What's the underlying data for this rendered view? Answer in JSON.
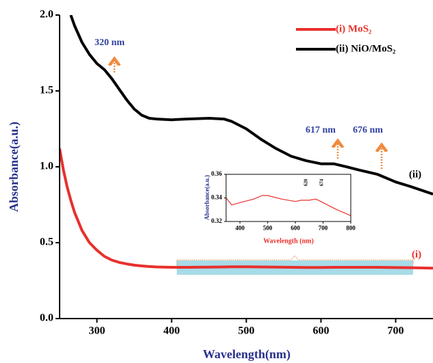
{
  "chart_data": [
    {
      "type": "line",
      "xlabel": "Wavelength(nm)",
      "ylabel": "Absorbance(a.u.)",
      "x": [
        250,
        255,
        260,
        265,
        270,
        280,
        290,
        300,
        310,
        320,
        330,
        340,
        350,
        360,
        370,
        380,
        400,
        420,
        450,
        470,
        480,
        500,
        520,
        540,
        560,
        580,
        600,
        617,
        630,
        650,
        676,
        700,
        720,
        750
      ],
      "series": [
        {
          "name": "(i)  MoS₂",
          "color": "#e8302c",
          "values": [
            1.12,
            0.98,
            0.87,
            0.78,
            0.7,
            0.58,
            0.5,
            0.45,
            0.41,
            0.385,
            0.37,
            0.36,
            0.352,
            0.347,
            0.343,
            0.34,
            0.338,
            0.338,
            0.339,
            0.34,
            0.341,
            0.341,
            0.34,
            0.339,
            0.338,
            0.337,
            0.337,
            0.338,
            0.338,
            0.338,
            0.338,
            0.336,
            0.335,
            0.332
          ]
        },
        {
          "name": "(ii) NiO/MoS₂",
          "color": "#000000",
          "values": [
            null,
            null,
            null,
            2.0,
            1.93,
            1.82,
            1.74,
            1.68,
            1.64,
            1.58,
            1.51,
            1.44,
            1.38,
            1.34,
            1.32,
            1.315,
            1.31,
            1.315,
            1.32,
            1.315,
            1.3,
            1.25,
            1.18,
            1.12,
            1.07,
            1.04,
            1.02,
            1.02,
            1.005,
            0.98,
            0.95,
            0.9,
            0.87,
            0.82
          ]
        }
      ],
      "xlim": [
        250,
        750
      ],
      "ylim": [
        0,
        2
      ],
      "xticks": [
        300,
        400,
        500,
        600,
        700
      ],
      "yticks": [
        {
          "value": 0,
          "label": "0.0"
        },
        0.5,
        {
          "value": 1,
          "label": "1.0"
        },
        1.5,
        {
          "value": 2,
          "label": "2.0"
        }
      ],
      "annotations": [
        "320 nm",
        "617 nm",
        "676 nm",
        "(ii)",
        "(i)"
      ]
    },
    {
      "type": "line",
      "xlabel": "Wavelength (nm)",
      "ylabel": "Absorbance(a.u.)",
      "x": [
        350,
        370,
        400,
        450,
        480,
        500,
        550,
        600,
        620,
        650,
        674,
        700,
        750,
        800
      ],
      "series": [
        {
          "color": "#e8302c",
          "values": [
            0.34,
            0.334,
            0.336,
            0.339,
            0.342,
            0.342,
            0.339,
            0.337,
            0.338,
            0.338,
            0.339,
            0.336,
            0.33,
            0.325
          ]
        }
      ],
      "xlim": [
        350,
        800
      ],
      "ylim": [
        0.32,
        0.36
      ],
      "xticks": [
        400,
        500,
        600,
        700,
        800
      ],
      "yticks": [
        0.32,
        0.34,
        0.36
      ],
      "annotations": [
        "620",
        "674"
      ]
    }
  ]
}
